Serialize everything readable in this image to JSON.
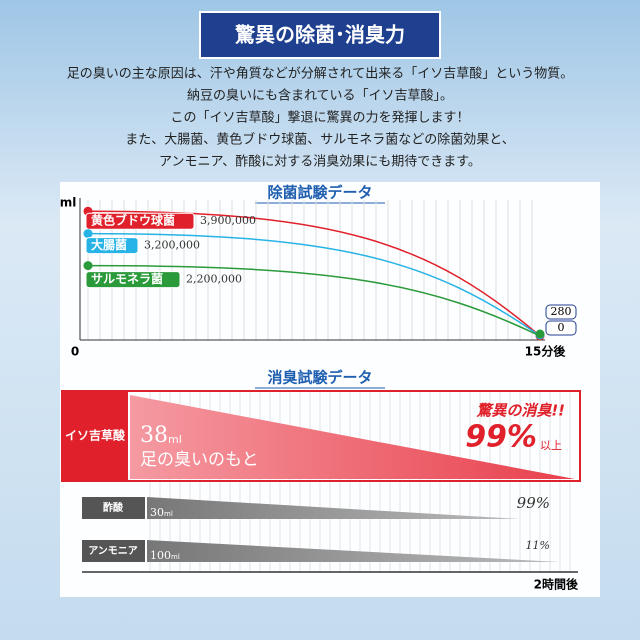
{
  "title": "驚異の除菌･消臭力",
  "intro": [
    "足の臭いの主な原因は、汗や角質などが分解されて出来る「イソ吉草酸」という物質。",
    "納豆の臭いにも含まれている「イソ吉草酸」。",
    "この「イソ吉草酸」撃退に驚異の力を発揮します！",
    "また、大腸菌、黄色ブドウ球菌、サルモネラ菌などの除菌効果と、",
    "アンモニア、酢酸に対する消臭効果にも期待できます。"
  ],
  "chart_data": [
    {
      "type": "line",
      "title": "除菌試験データ",
      "y_label": "ml",
      "categories": [
        "0",
        "15分後"
      ],
      "ylim": [
        0,
        4000000
      ],
      "series": [
        {
          "name": "黄色ブドウ球菌",
          "color": "#e0202a",
          "values": [
            3900000,
            280
          ],
          "value_labels": [
            "3,900,000",
            "280"
          ]
        },
        {
          "name": "大腸菌",
          "color": "#27b3e6",
          "values": [
            3200000,
            0
          ],
          "value_labels": [
            "3,200,000",
            "0"
          ]
        },
        {
          "name": "サルモネラ菌",
          "color": "#2a9a3a",
          "values": [
            2200000,
            0
          ],
          "value_labels": [
            "2,200,000",
            null
          ]
        }
      ]
    },
    {
      "type": "reduction",
      "title": "消臭試験データ",
      "x_label": "2時間後",
      "rows": [
        {
          "name": "イソ吉草酸",
          "amount": 38,
          "unit": "ml",
          "note": "足の臭いのもと",
          "headline": "驚異の消臭!!",
          "reduction": 99,
          "reduction_label": "99%",
          "suffix": "以上",
          "color": "#e0202a"
        },
        {
          "name": "酢酸",
          "amount": 30,
          "unit": "ml",
          "reduction": 99,
          "reduction_label": "99%",
          "color": "#888888"
        },
        {
          "name": "アンモニア",
          "amount": 100,
          "unit": "ml",
          "reduction": 11,
          "reduction_label": "11%",
          "color": "#888888"
        }
      ]
    }
  ]
}
